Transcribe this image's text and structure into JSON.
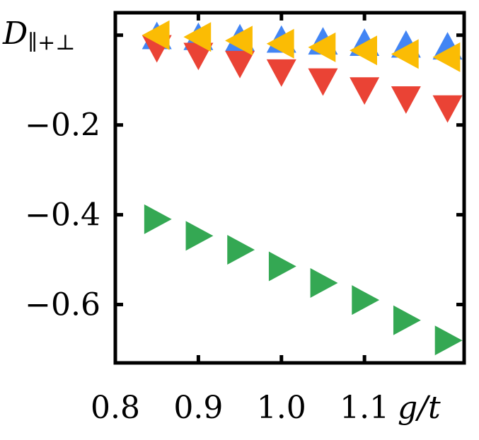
{
  "chart_data": {
    "type": "scatter",
    "title": "",
    "xlabel": "g/t",
    "ylabel_main": "D",
    "ylabel_sub": "∥+⊥",
    "xlim": [
      0.8,
      1.22
    ],
    "ylim": [
      -0.73,
      0.05
    ],
    "x_ticks": [
      0.8,
      0.9,
      1.0,
      1.1
    ],
    "x_tick_labels": [
      "0.8",
      "0.9",
      "1.0",
      "1.1"
    ],
    "y_ticks": [
      0.0,
      -0.2,
      -0.4,
      -0.6
    ],
    "y_tick_labels": [
      "",
      "−0.2",
      "−0.4",
      "−0.6"
    ],
    "grid": false,
    "series": [
      {
        "name": "up",
        "marker": "triangle-up",
        "color": "#4285f4",
        "x": [
          0.85,
          0.9,
          0.95,
          1.0,
          1.05,
          1.1,
          1.15,
          1.2
        ],
        "y": [
          -0.003,
          -0.005,
          -0.008,
          -0.011,
          -0.015,
          -0.018,
          -0.022,
          -0.026
        ]
      },
      {
        "name": "down",
        "marker": "triangle-down",
        "color": "#ea4335",
        "x": [
          0.85,
          0.9,
          0.95,
          1.0,
          1.05,
          1.1,
          1.15,
          1.2
        ],
        "y": [
          -0.028,
          -0.045,
          -0.063,
          -0.082,
          -0.102,
          -0.122,
          -0.142,
          -0.162
        ]
      },
      {
        "name": "left",
        "marker": "triangle-left",
        "color": "#fbbc04",
        "x": [
          0.85,
          0.9,
          0.95,
          1.0,
          1.05,
          1.1,
          1.15,
          1.2
        ],
        "y": [
          0.0,
          -0.004,
          -0.012,
          -0.019,
          -0.027,
          -0.034,
          -0.042,
          -0.049
        ]
      },
      {
        "name": "right",
        "marker": "triangle-right",
        "color": "#34a853",
        "x": [
          0.85,
          0.9,
          0.95,
          1.0,
          1.05,
          1.1,
          1.15,
          1.2
        ],
        "y": [
          -0.41,
          -0.447,
          -0.478,
          -0.515,
          -0.552,
          -0.59,
          -0.635,
          -0.68
        ]
      }
    ]
  }
}
